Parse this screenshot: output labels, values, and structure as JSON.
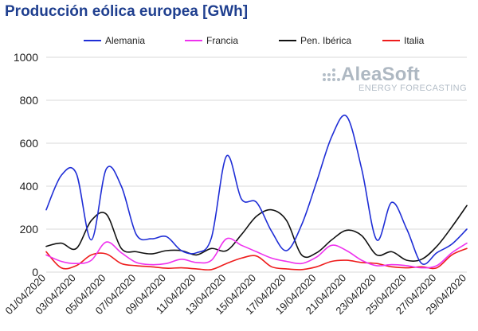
{
  "title": "Producción eólica europea [GWh]",
  "logo": {
    "name": "AleaSoft",
    "subtitle": "ENERGY FORECASTING"
  },
  "colors": {
    "Alemania": "#1f2ed6",
    "Francia": "#ee32ee",
    "Pen. Ibérica": "#111111",
    "Italia": "#ee1c1c",
    "grid": "#d9d9d9",
    "title": "#1f3f8f"
  },
  "chart_data": {
    "type": "line",
    "title": "Producción eólica europea [GWh]",
    "xlabel": "",
    "ylabel": "",
    "ylim": [
      0,
      1000
    ],
    "yticks": [
      0,
      200,
      400,
      600,
      800,
      1000
    ],
    "grid": "horizontal",
    "legend": "top",
    "x": [
      "01/04/2020",
      "02/04/2020",
      "03/04/2020",
      "04/04/2020",
      "05/04/2020",
      "06/04/2020",
      "07/04/2020",
      "08/04/2020",
      "09/04/2020",
      "10/04/2020",
      "11/04/2020",
      "12/04/2020",
      "13/04/2020",
      "14/04/2020",
      "15/04/2020",
      "16/04/2020",
      "17/04/2020",
      "18/04/2020",
      "19/04/2020",
      "20/04/2020",
      "21/04/2020",
      "22/04/2020",
      "23/04/2020",
      "24/04/2020",
      "25/04/2020",
      "26/04/2020",
      "27/04/2020",
      "28/04/2020",
      "29/04/2020"
    ],
    "xtick_labels": [
      "01/04/2020",
      "03/04/2020",
      "05/04/2020",
      "07/04/2020",
      "09/04/2020",
      "11/04/2020",
      "13/04/2020",
      "15/04/2020",
      "17/04/2020",
      "19/04/2020",
      "21/04/2020",
      "23/04/2020",
      "25/04/2020",
      "27/04/2020",
      "29/04/2020"
    ],
    "series": [
      {
        "name": "Alemania",
        "values": [
          290,
          450,
          460,
          150,
          480,
          400,
          175,
          155,
          165,
          100,
          90,
          160,
          540,
          340,
          325,
          190,
          100,
          220,
          420,
          630,
          725,
          480,
          150,
          325,
          200,
          40,
          90,
          130,
          200
        ]
      },
      {
        "name": "Francia",
        "values": [
          80,
          50,
          40,
          55,
          140,
          90,
          45,
          35,
          40,
          60,
          45,
          55,
          155,
          125,
          95,
          65,
          50,
          40,
          70,
          125,
          100,
          55,
          30,
          35,
          30,
          20,
          30,
          90,
          135
        ]
      },
      {
        "name": "Pen. Ibérica",
        "values": [
          120,
          135,
          110,
          240,
          270,
          110,
          95,
          85,
          100,
          100,
          80,
          110,
          100,
          175,
          260,
          290,
          240,
          80,
          90,
          150,
          195,
          170,
          80,
          95,
          55,
          60,
          120,
          210,
          310
        ]
      },
      {
        "name": "Italia",
        "values": [
          95,
          20,
          30,
          80,
          85,
          40,
          30,
          25,
          18,
          20,
          15,
          12,
          40,
          65,
          75,
          25,
          15,
          12,
          25,
          50,
          55,
          45,
          40,
          25,
          20,
          25,
          20,
          80,
          110
        ]
      }
    ]
  }
}
